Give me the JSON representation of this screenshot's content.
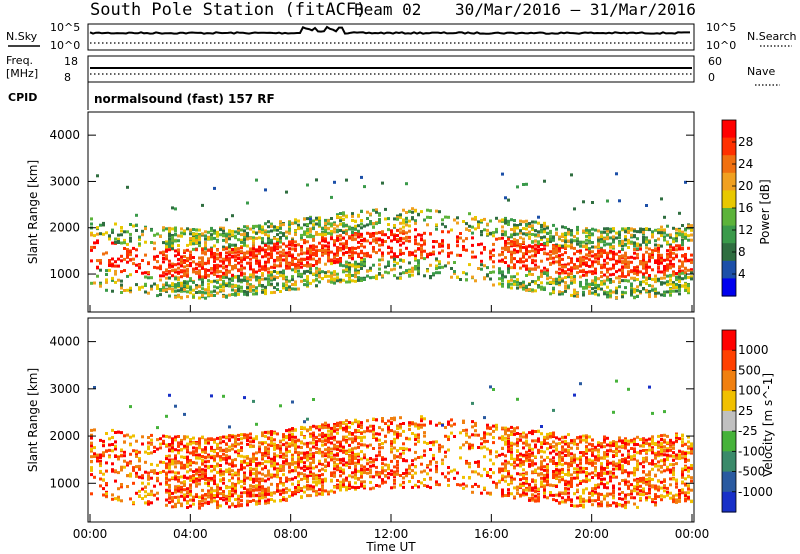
{
  "header": {
    "title": "South Pole Station (fitACF)",
    "beam": "Beam 02",
    "dates": "30/Mar/2016 – 31/Mar/2016"
  },
  "status_panels": {
    "nsky_label": "N.Sky",
    "nsky_ticks": [
      "10^5",
      "10^0"
    ],
    "nsearch_label": "N.Search",
    "nsearch_ticks": [
      "10^5",
      "10^0"
    ],
    "freq_label": "Freq.",
    "freq_unit": "[MHz]",
    "freq_ticks": [
      "18",
      "8"
    ],
    "nave_label": "Nave",
    "nave_ticks": [
      "60",
      "0"
    ],
    "cpid_label": "CPID",
    "cpid_text": "normalsound (fast) 157 RF"
  },
  "chart_data": [
    {
      "type": "heatmap",
      "name": "power",
      "xlabel": "",
      "ylabel": "Slant Range [km]",
      "ylim": [
        180,
        4500
      ],
      "yticks": [
        "1000",
        "2000",
        "3000",
        "4000"
      ],
      "colorbar": {
        "label": "Power [dB]",
        "ticks": [
          "28",
          "24",
          "20",
          "16",
          "12",
          "8",
          "4"
        ],
        "colors": [
          "#0000ee",
          "#1c4fa8",
          "#2f6e40",
          "#3a9a4a",
          "#5cb33a",
          "#e8c800",
          "#f0a020",
          "#f07010",
          "#ff3000",
          "#ff0000"
        ]
      }
    },
    {
      "type": "heatmap",
      "name": "velocity",
      "xlabel": "Time UT",
      "ylabel": "Slant Range [km]",
      "ylim": [
        180,
        4500
      ],
      "yticks": [
        "1000",
        "2000",
        "3000",
        "4000"
      ],
      "xticks": [
        "00:00",
        "04:00",
        "08:00",
        "12:00",
        "16:00",
        "20:00",
        "00:00"
      ],
      "colorbar": {
        "label": "Velocity [m s^-1]",
        "ticks": [
          "1000",
          "500",
          "100",
          "25",
          "-25",
          "-100",
          "-500",
          "-1000"
        ],
        "colors": [
          "#1830c8",
          "#2a5aa0",
          "#3a8a6a",
          "#46b23a",
          "#c0c0c0",
          "#f0c000",
          "#f08010",
          "#ff4000",
          "#ff0000"
        ]
      }
    }
  ],
  "palette": {
    "frame": "#000000",
    "power_band": "#ee2200",
    "velocity_band": "#e88a10"
  }
}
